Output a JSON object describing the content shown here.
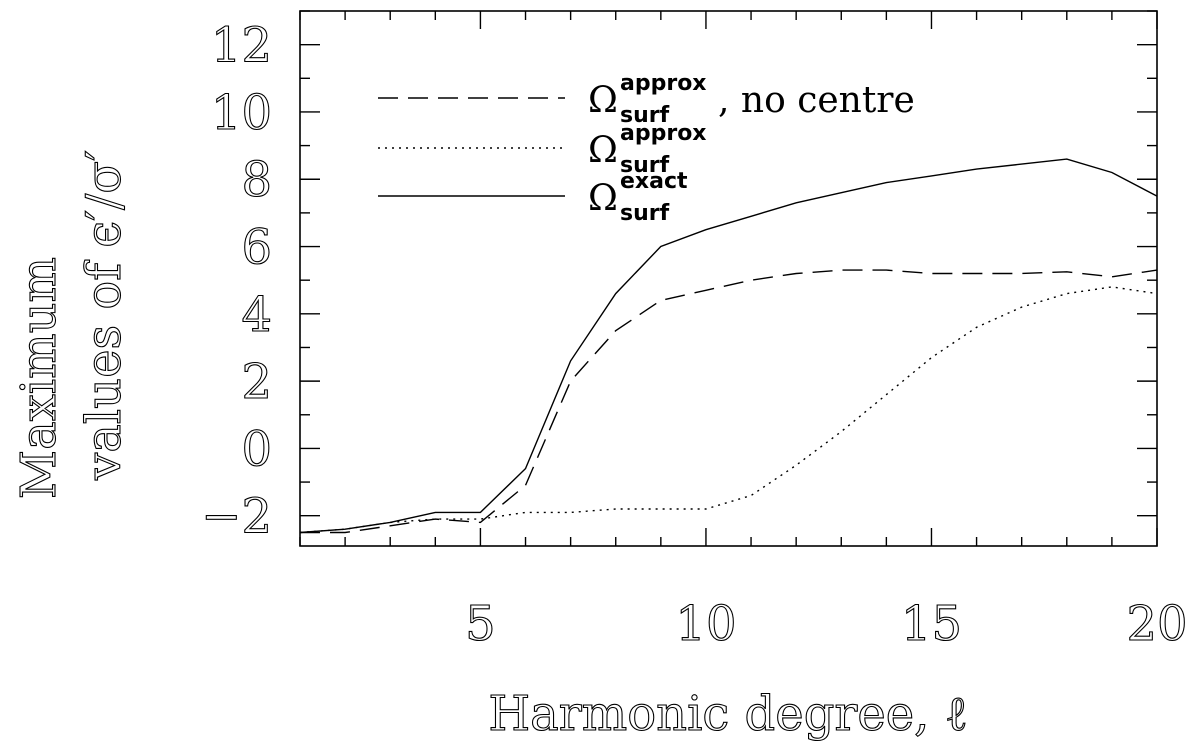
{
  "chart_data": {
    "type": "line",
    "xlabel": "Harmonic degree, ℓ",
    "ylabel_line1": "Maximum",
    "ylabel_line2": "values of ϵ′/σ′",
    "xlim": [
      1,
      20
    ],
    "ylim": [
      -2.9,
      13
    ],
    "x_ticks": [
      5,
      10,
      15,
      20
    ],
    "y_ticks": [
      12,
      10,
      8,
      6,
      4,
      2,
      0,
      -2
    ],
    "y_tick_labels": [
      "12",
      "10",
      "8",
      "6",
      "4",
      "2",
      "0",
      "−2"
    ],
    "x_tick_labels": [
      "5",
      "10",
      "15",
      "20"
    ],
    "grid": false,
    "legend_position": "top-left",
    "series": [
      {
        "name": "Ω surf approx, no centre",
        "symbol": "Ω",
        "sup": "approx",
        "sub": "surf",
        "suffix": ", no centre",
        "style": "dashed",
        "x": [
          1,
          2,
          3,
          4,
          5,
          6,
          7,
          8,
          9,
          10,
          11,
          12,
          13,
          14,
          15,
          16,
          17,
          18,
          19,
          20
        ],
        "values": [
          -2.5,
          -2.5,
          -2.3,
          -2.1,
          -2.2,
          -1.1,
          2.0,
          3.5,
          4.4,
          4.7,
          5.0,
          5.2,
          5.3,
          5.3,
          5.2,
          5.2,
          5.2,
          5.25,
          5.1,
          5.3
        ]
      },
      {
        "name": "Ω surf approx",
        "symbol": "Ω",
        "sup": "approx",
        "sub": "surf",
        "suffix": "",
        "style": "dotted",
        "x": [
          1,
          2,
          3,
          4,
          5,
          6,
          7,
          8,
          9,
          10,
          11,
          12,
          13,
          14,
          15,
          16,
          17,
          18,
          19,
          20
        ],
        "values": [
          -2.5,
          -2.4,
          -2.2,
          -2.1,
          -2.1,
          -1.9,
          -1.9,
          -1.8,
          -1.8,
          -1.8,
          -1.4,
          -0.5,
          0.5,
          1.6,
          2.7,
          3.6,
          4.2,
          4.6,
          4.8,
          4.6
        ]
      },
      {
        "name": "Ω surf exact",
        "symbol": "Ω",
        "sup": "exact",
        "sub": "surf",
        "suffix": "",
        "style": "solid",
        "x": [
          1,
          2,
          3,
          4,
          5,
          6,
          7,
          8,
          9,
          10,
          11,
          12,
          13,
          14,
          15,
          16,
          17,
          18,
          19,
          20
        ],
        "values": [
          -2.5,
          -2.4,
          -2.2,
          -1.9,
          -1.9,
          -0.6,
          2.6,
          4.6,
          6.0,
          6.5,
          6.9,
          7.3,
          7.6,
          7.9,
          8.1,
          8.3,
          8.45,
          8.6,
          8.2,
          7.5
        ]
      }
    ]
  }
}
